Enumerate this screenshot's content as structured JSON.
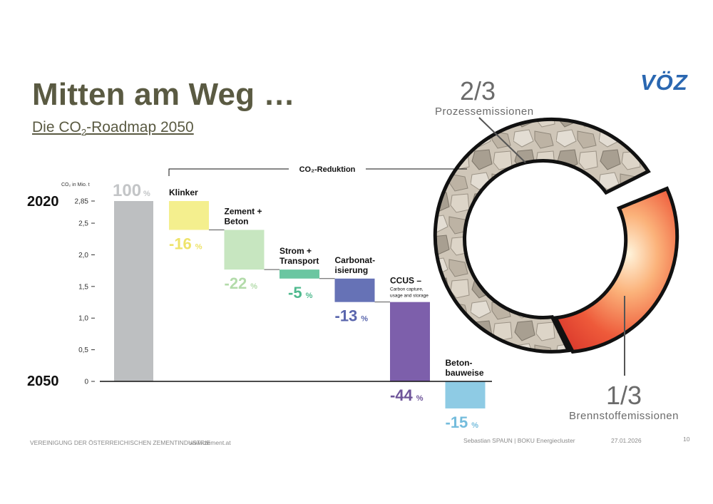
{
  "header": {
    "title": "Mitten am Weg …",
    "subtitle_prefix": "Die CO",
    "subtitle_sub": "2",
    "subtitle_suffix": "-Roadmap 2050",
    "logo": "VÖZ"
  },
  "chart_data": {
    "type": "waterfall",
    "ylabel": "CO₂ in Mio. t",
    "ylim": [
      0,
      2.85
    ],
    "yticks": [
      "0",
      "0,5",
      "1,0",
      "1,5",
      "2,0",
      "2,5",
      "2,85"
    ],
    "ytick_values": [
      0,
      0.5,
      1.0,
      1.5,
      2.0,
      2.5,
      2.85
    ],
    "year_start": "2020",
    "year_end": "2050",
    "reduction_label": "CO₂-Reduktion",
    "start_bar": {
      "value": 2.85,
      "label": "100",
      "unit": "%",
      "color": "#bdbfc1"
    },
    "steps": [
      {
        "name": "Klinker",
        "label_lines": [
          "Klinker"
        ],
        "pct": 16,
        "value_label": "-16",
        "color": "#f4ef8e",
        "text_color": "#eee36a"
      },
      {
        "name": "Zement + Beton",
        "label_lines": [
          "Zement +",
          "Beton"
        ],
        "pct": 22,
        "value_label": "-22",
        "color": "#c7e6c0",
        "text_color": "#b3dbaa"
      },
      {
        "name": "Strom + Transport",
        "label_lines": [
          "Strom +",
          "Transport"
        ],
        "pct": 5,
        "value_label": "-5",
        "color": "#6bc6a1",
        "text_color": "#4fb98e"
      },
      {
        "name": "Carbonatisierung",
        "label_lines": [
          "Carbonat-",
          "isierung"
        ],
        "pct": 13,
        "value_label": "-13",
        "color": "#6672b6",
        "text_color": "#5a66ad"
      },
      {
        "name": "CCUS",
        "label_lines": [
          "CCUS –"
        ],
        "sub_lines": [
          "Carbon capture,",
          "usage and storage"
        ],
        "pct": 44,
        "value_label": "-44",
        "color": "#7d5fab",
        "text_color": "#6e5499"
      },
      {
        "name": "Betonbauweise",
        "label_lines": [
          "Beton-",
          "bauweise"
        ],
        "pct": 15,
        "value_label": "-15",
        "color": "#8ecbe4",
        "text_color": "#74bcdc"
      }
    ],
    "unit": "%"
  },
  "donut": {
    "top_fraction": "2/3",
    "top_label": "Prozessemissionen",
    "bottom_fraction": "1/3",
    "bottom_label": "Brennstoffemissionen"
  },
  "footer": {
    "org": "VEREINIGUNG DER ÖSTERREICHISCHEN ZEMENTINDUSTRIE",
    "url": "www.zement.at",
    "author": "Sebastian SPAUN   |   BOKU Energiecluster",
    "date": "27.01.2026",
    "page": "10"
  }
}
